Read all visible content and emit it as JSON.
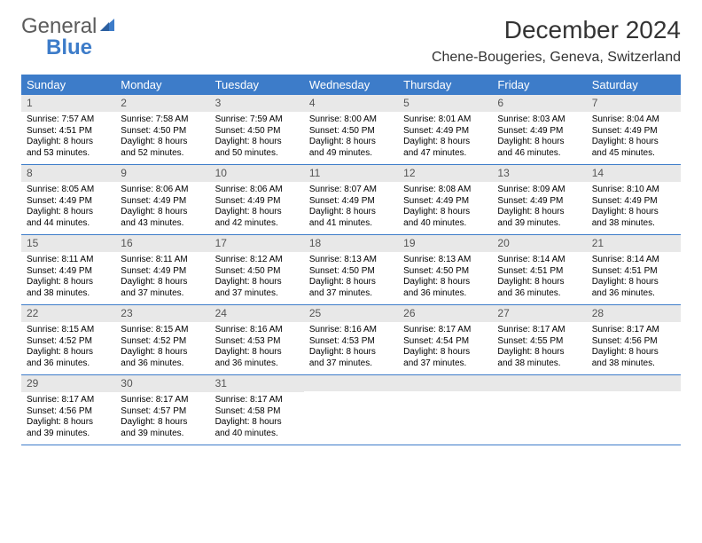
{
  "logo": {
    "text1": "General",
    "text2": "Blue"
  },
  "title": "December 2024",
  "location": "Chene-Bougeries, Geneva, Switzerland",
  "colors": {
    "header_bg": "#3d7cc9",
    "header_text": "#ffffff",
    "daynum_bg": "#e8e8e8",
    "border": "#3d7cc9"
  },
  "weekdays": [
    "Sunday",
    "Monday",
    "Tuesday",
    "Wednesday",
    "Thursday",
    "Friday",
    "Saturday"
  ],
  "weeks": [
    [
      {
        "n": "1",
        "sr": "Sunrise: 7:57 AM",
        "ss": "Sunset: 4:51 PM",
        "d1": "Daylight: 8 hours",
        "d2": "and 53 minutes."
      },
      {
        "n": "2",
        "sr": "Sunrise: 7:58 AM",
        "ss": "Sunset: 4:50 PM",
        "d1": "Daylight: 8 hours",
        "d2": "and 52 minutes."
      },
      {
        "n": "3",
        "sr": "Sunrise: 7:59 AM",
        "ss": "Sunset: 4:50 PM",
        "d1": "Daylight: 8 hours",
        "d2": "and 50 minutes."
      },
      {
        "n": "4",
        "sr": "Sunrise: 8:00 AM",
        "ss": "Sunset: 4:50 PM",
        "d1": "Daylight: 8 hours",
        "d2": "and 49 minutes."
      },
      {
        "n": "5",
        "sr": "Sunrise: 8:01 AM",
        "ss": "Sunset: 4:49 PM",
        "d1": "Daylight: 8 hours",
        "d2": "and 47 minutes."
      },
      {
        "n": "6",
        "sr": "Sunrise: 8:03 AM",
        "ss": "Sunset: 4:49 PM",
        "d1": "Daylight: 8 hours",
        "d2": "and 46 minutes."
      },
      {
        "n": "7",
        "sr": "Sunrise: 8:04 AM",
        "ss": "Sunset: 4:49 PM",
        "d1": "Daylight: 8 hours",
        "d2": "and 45 minutes."
      }
    ],
    [
      {
        "n": "8",
        "sr": "Sunrise: 8:05 AM",
        "ss": "Sunset: 4:49 PM",
        "d1": "Daylight: 8 hours",
        "d2": "and 44 minutes."
      },
      {
        "n": "9",
        "sr": "Sunrise: 8:06 AM",
        "ss": "Sunset: 4:49 PM",
        "d1": "Daylight: 8 hours",
        "d2": "and 43 minutes."
      },
      {
        "n": "10",
        "sr": "Sunrise: 8:06 AM",
        "ss": "Sunset: 4:49 PM",
        "d1": "Daylight: 8 hours",
        "d2": "and 42 minutes."
      },
      {
        "n": "11",
        "sr": "Sunrise: 8:07 AM",
        "ss": "Sunset: 4:49 PM",
        "d1": "Daylight: 8 hours",
        "d2": "and 41 minutes."
      },
      {
        "n": "12",
        "sr": "Sunrise: 8:08 AM",
        "ss": "Sunset: 4:49 PM",
        "d1": "Daylight: 8 hours",
        "d2": "and 40 minutes."
      },
      {
        "n": "13",
        "sr": "Sunrise: 8:09 AM",
        "ss": "Sunset: 4:49 PM",
        "d1": "Daylight: 8 hours",
        "d2": "and 39 minutes."
      },
      {
        "n": "14",
        "sr": "Sunrise: 8:10 AM",
        "ss": "Sunset: 4:49 PM",
        "d1": "Daylight: 8 hours",
        "d2": "and 38 minutes."
      }
    ],
    [
      {
        "n": "15",
        "sr": "Sunrise: 8:11 AM",
        "ss": "Sunset: 4:49 PM",
        "d1": "Daylight: 8 hours",
        "d2": "and 38 minutes."
      },
      {
        "n": "16",
        "sr": "Sunrise: 8:11 AM",
        "ss": "Sunset: 4:49 PM",
        "d1": "Daylight: 8 hours",
        "d2": "and 37 minutes."
      },
      {
        "n": "17",
        "sr": "Sunrise: 8:12 AM",
        "ss": "Sunset: 4:50 PM",
        "d1": "Daylight: 8 hours",
        "d2": "and 37 minutes."
      },
      {
        "n": "18",
        "sr": "Sunrise: 8:13 AM",
        "ss": "Sunset: 4:50 PM",
        "d1": "Daylight: 8 hours",
        "d2": "and 37 minutes."
      },
      {
        "n": "19",
        "sr": "Sunrise: 8:13 AM",
        "ss": "Sunset: 4:50 PM",
        "d1": "Daylight: 8 hours",
        "d2": "and 36 minutes."
      },
      {
        "n": "20",
        "sr": "Sunrise: 8:14 AM",
        "ss": "Sunset: 4:51 PM",
        "d1": "Daylight: 8 hours",
        "d2": "and 36 minutes."
      },
      {
        "n": "21",
        "sr": "Sunrise: 8:14 AM",
        "ss": "Sunset: 4:51 PM",
        "d1": "Daylight: 8 hours",
        "d2": "and 36 minutes."
      }
    ],
    [
      {
        "n": "22",
        "sr": "Sunrise: 8:15 AM",
        "ss": "Sunset: 4:52 PM",
        "d1": "Daylight: 8 hours",
        "d2": "and 36 minutes."
      },
      {
        "n": "23",
        "sr": "Sunrise: 8:15 AM",
        "ss": "Sunset: 4:52 PM",
        "d1": "Daylight: 8 hours",
        "d2": "and 36 minutes."
      },
      {
        "n": "24",
        "sr": "Sunrise: 8:16 AM",
        "ss": "Sunset: 4:53 PM",
        "d1": "Daylight: 8 hours",
        "d2": "and 36 minutes."
      },
      {
        "n": "25",
        "sr": "Sunrise: 8:16 AM",
        "ss": "Sunset: 4:53 PM",
        "d1": "Daylight: 8 hours",
        "d2": "and 37 minutes."
      },
      {
        "n": "26",
        "sr": "Sunrise: 8:17 AM",
        "ss": "Sunset: 4:54 PM",
        "d1": "Daylight: 8 hours",
        "d2": "and 37 minutes."
      },
      {
        "n": "27",
        "sr": "Sunrise: 8:17 AM",
        "ss": "Sunset: 4:55 PM",
        "d1": "Daylight: 8 hours",
        "d2": "and 38 minutes."
      },
      {
        "n": "28",
        "sr": "Sunrise: 8:17 AM",
        "ss": "Sunset: 4:56 PM",
        "d1": "Daylight: 8 hours",
        "d2": "and 38 minutes."
      }
    ],
    [
      {
        "n": "29",
        "sr": "Sunrise: 8:17 AM",
        "ss": "Sunset: 4:56 PM",
        "d1": "Daylight: 8 hours",
        "d2": "and 39 minutes."
      },
      {
        "n": "30",
        "sr": "Sunrise: 8:17 AM",
        "ss": "Sunset: 4:57 PM",
        "d1": "Daylight: 8 hours",
        "d2": "and 39 minutes."
      },
      {
        "n": "31",
        "sr": "Sunrise: 8:17 AM",
        "ss": "Sunset: 4:58 PM",
        "d1": "Daylight: 8 hours",
        "d2": "and 40 minutes."
      },
      {
        "empty": true
      },
      {
        "empty": true
      },
      {
        "empty": true
      },
      {
        "empty": true
      }
    ]
  ]
}
